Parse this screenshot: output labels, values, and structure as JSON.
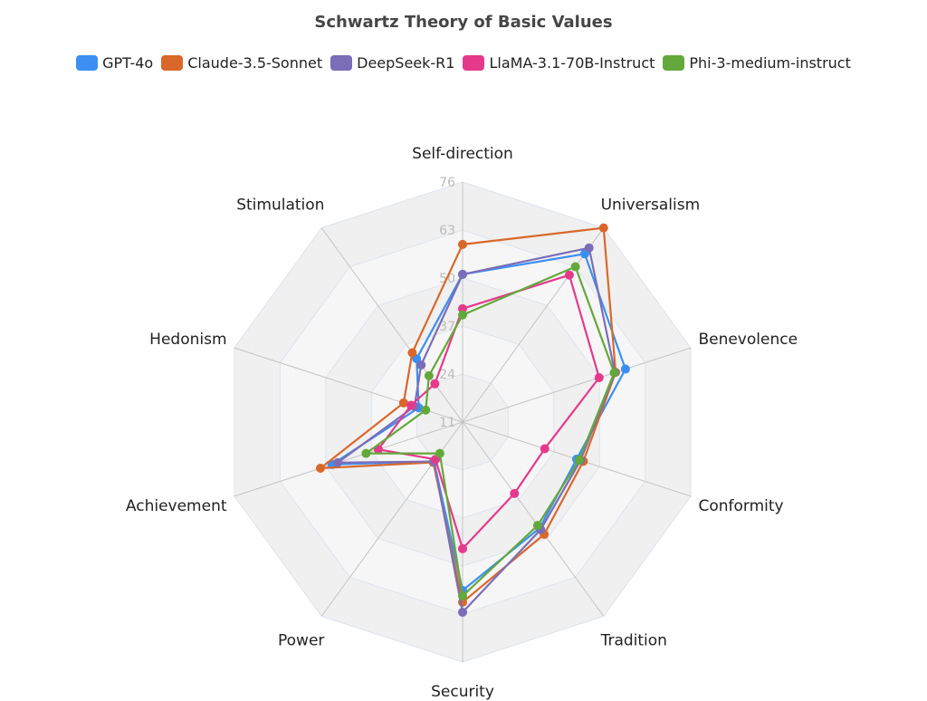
{
  "chart_data": {
    "type": "radar",
    "title": "Schwartz Theory of Basic Values",
    "categories": [
      "Self-direction",
      "Universalism",
      "Benevolence",
      "Conformity",
      "Tradition",
      "Security",
      "Power",
      "Achievement",
      "Hedonism",
      "Stimulation"
    ],
    "rlim": [
      11,
      76
    ],
    "ticks": [
      11,
      24,
      37,
      50,
      63,
      76
    ],
    "legend_position": "top",
    "series": [
      {
        "name": "GPT-4o",
        "color": "#3b8ff3",
        "values": [
          51,
          67.3,
          57.4,
          43.5,
          46.5,
          56.6,
          24.2,
          48.2,
          23.5,
          32.2
        ]
      },
      {
        "name": "Claude-3.5-Sonnet",
        "color": "#d9682a",
        "values": [
          59.1,
          76,
          54.6,
          45.4,
          48.6,
          59.8,
          24.5,
          51.5,
          27.8,
          34.2
        ]
      },
      {
        "name": "DeepSeek-R1",
        "color": "#7b6db8",
        "values": [
          51,
          69.3,
          54.4,
          44.6,
          47,
          62.5,
          24.2,
          46.6,
          24.7,
          30.1
        ]
      },
      {
        "name": "LlaMA-3.1-70B-Instruct",
        "color": "#e53a8c",
        "values": [
          41.7,
          60.2,
          49.9,
          34.4,
          34.9,
          45.3,
          23.5,
          35,
          25.7,
          23.8
        ]
      },
      {
        "name": "Phi-3-medium-instruct",
        "color": "#63a83b",
        "values": [
          40,
          63,
          54.2,
          44.2,
          45.6,
          58.1,
          21.5,
          38.5,
          21.5,
          26.5
        ]
      }
    ]
  },
  "title": "Schwartz Theory of Basic Values",
  "legend": [
    {
      "label": "GPT-4o",
      "color": "#3b8ff3"
    },
    {
      "label": "Claude-3.5-Sonnet",
      "color": "#d9682a"
    },
    {
      "label": "DeepSeek-R1",
      "color": "#7b6db8"
    },
    {
      "label": "LlaMA-3.1-70B-Instruct",
      "color": "#e53a8c"
    },
    {
      "label": "Phi-3-medium-instruct",
      "color": "#63a83b"
    }
  ]
}
